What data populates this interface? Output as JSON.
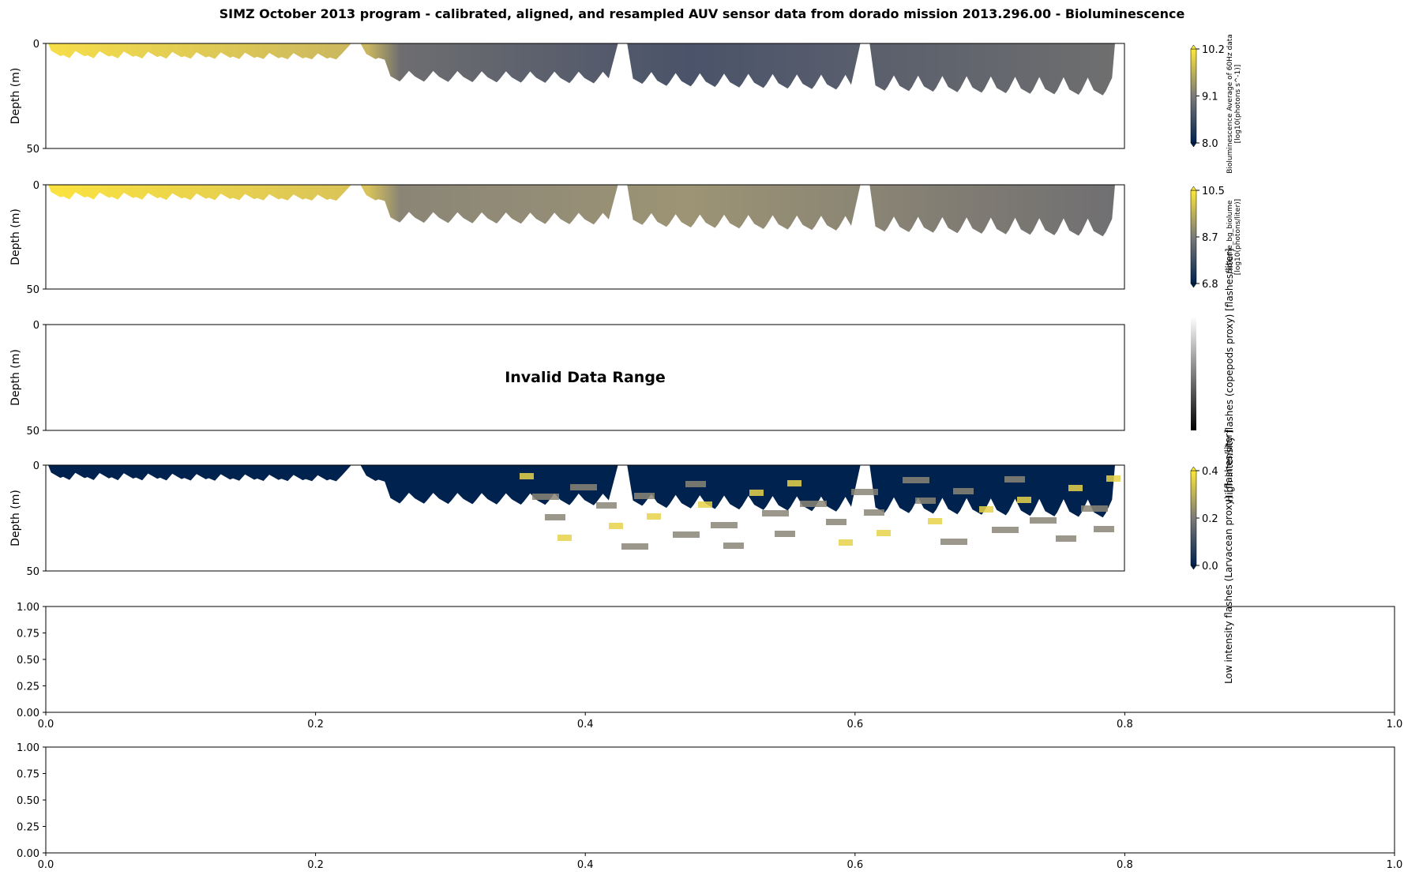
{
  "title": "SIMZ October 2013 program - calibrated, aligned, and resampled AUV sensor data from dorado mission 2013.296.00 - Bioluminescence",
  "chart_data": [
    {
      "type": "heatmap",
      "name": "bioluminescence-avg",
      "ylabel": "Depth (m)",
      "ylim": [
        50,
        0
      ],
      "yticks": [
        "0",
        "50"
      ],
      "colorbar": {
        "label": [
          "Bioluminescence Average of 60Hz data",
          "[log10(photons s^-1)]"
        ],
        "ticks": [
          "10.2",
          "9.1",
          "8.0"
        ],
        "range": [
          8.0,
          10.2
        ],
        "colormap": "cividis"
      }
    },
    {
      "type": "heatmap",
      "name": "biolume-bg",
      "ylabel": "Depth (m)",
      "ylim": [
        50,
        0
      ],
      "yticks": [
        "0",
        "50"
      ],
      "colorbar": {
        "label": [
          "biolume_bg_biolume",
          "[log10(photons/liter)]"
        ],
        "ticks": [
          "10.5",
          "8.7",
          "6.8"
        ],
        "range": [
          6.8,
          10.5
        ],
        "colormap": "cividis"
      }
    },
    {
      "type": "heatmap",
      "name": "high-intensity-flashes",
      "ylabel": "Depth (m)",
      "ylim": [
        50,
        0
      ],
      "yticks": [
        "0",
        "50"
      ],
      "annotation": "Invalid Data Range",
      "colorbar": {
        "label": [
          "High intensity flashes (copepods proxy) [flashes/liter]"
        ],
        "ticks": [],
        "colormap": "gray"
      }
    },
    {
      "type": "heatmap",
      "name": "low-intensity-flashes",
      "ylabel": "Depth (m)",
      "ylim": [
        50,
        0
      ],
      "yticks": [
        "0",
        "50"
      ],
      "colorbar": {
        "label": [
          "Low intensity flashes (Larvacean proxy) [flashes/liter]"
        ],
        "ticks": [
          "0.4",
          "0.2",
          "0.0"
        ],
        "range": [
          0.0,
          0.4
        ],
        "colormap": "cividis"
      }
    },
    {
      "type": "line",
      "name": "empty-axes-1",
      "xlim": [
        0,
        1
      ],
      "ylim": [
        0,
        1
      ],
      "xticks": [
        "0.0",
        "0.2",
        "0.4",
        "0.6",
        "0.8",
        "1.0"
      ],
      "yticks": [
        "0.00",
        "0.25",
        "0.50",
        "0.75",
        "1.00"
      ]
    },
    {
      "type": "line",
      "name": "empty-axes-2",
      "xlim": [
        0,
        1
      ],
      "ylim": [
        0,
        1
      ],
      "xticks": [
        "0.0",
        "0.2",
        "0.4",
        "0.6",
        "0.8",
        "1.0"
      ],
      "yticks": [
        "0.00",
        "0.25",
        "0.50",
        "0.75",
        "1.00"
      ]
    }
  ],
  "colors": {
    "yellow": "#fde737",
    "gray": "#7c7b78",
    "navy": "#00224e"
  }
}
